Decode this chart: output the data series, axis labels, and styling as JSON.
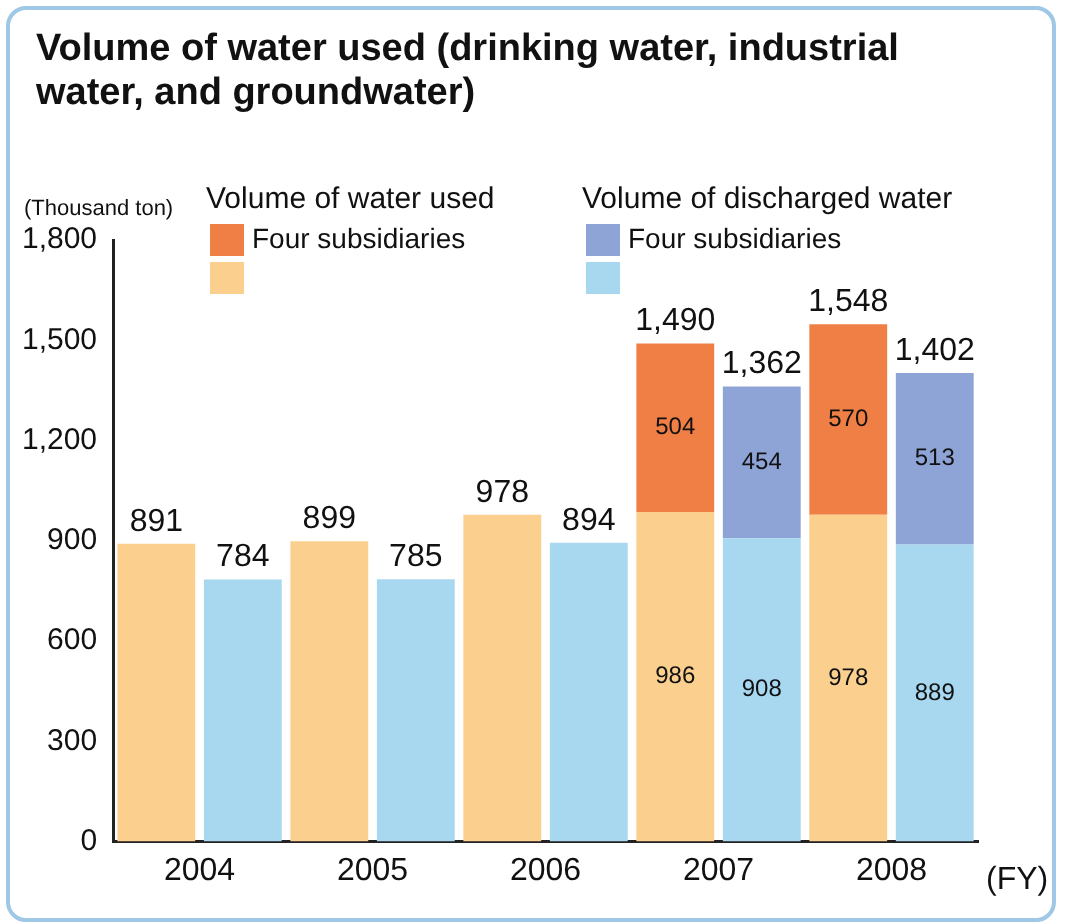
{
  "chart_data": {
    "type": "bar",
    "title": "Volume of water used (drinking water, industrial water, and groundwater)",
    "ylabel": "(Thousand ton)",
    "xlabel": "(FY)",
    "annotations": [
      "Volume of water used",
      "Volume of discharged water"
    ],
    "categories": [
      "2004",
      null,
      "2005",
      null,
      "2006",
      null,
      "2007",
      null,
      "2008",
      null
    ],
    "stacked": true,
    "series": [
      {
        "color": "#fbd08f",
        "values": [
          891,
          null,
          899,
          null,
          978,
          null,
          986,
          null,
          978,
          null
        ],
        "value_labels": [
          "891",
          null,
          "899",
          null,
          "978",
          null,
          "986",
          null,
          "978",
          null
        ]
      },
      {
        "name": "Four subsidiaries",
        "color": "#f07f45",
        "values": [
          null,
          null,
          null,
          null,
          null,
          null,
          504,
          null,
          570,
          null
        ],
        "value_labels": [
          null,
          null,
          null,
          null,
          null,
          null,
          "504",
          null,
          "570",
          null
        ]
      },
      {
        "color": "#a8d8f0",
        "values": [
          null,
          784,
          null,
          785,
          null,
          894,
          null,
          908,
          null,
          889
        ],
        "value_labels": [
          null,
          "784",
          null,
          "785",
          null,
          "894",
          null,
          "908",
          null,
          "889"
        ]
      },
      {
        "name": "Four subsidiaries",
        "color": "#8ea3d6",
        "values": [
          null,
          null,
          null,
          null,
          null,
          null,
          null,
          454,
          null,
          513
        ],
        "value_labels": [
          null,
          null,
          null,
          null,
          null,
          null,
          null,
          "454",
          null,
          "513"
        ]
      }
    ],
    "totals": [
      null,
      null,
      null,
      null,
      null,
      null,
      "1,490",
      "1,362",
      "1,548",
      "1,402"
    ],
    "ylim": [
      0,
      1800
    ],
    "yticks": [
      0,
      300,
      600,
      900,
      {
        "value": 1200,
        "label": "1,200"
      },
      {
        "value": 1500,
        "label": "1,500"
      },
      {
        "value": 1800,
        "label": "1,800"
      }
    ],
    "legend": "top left"
  }
}
